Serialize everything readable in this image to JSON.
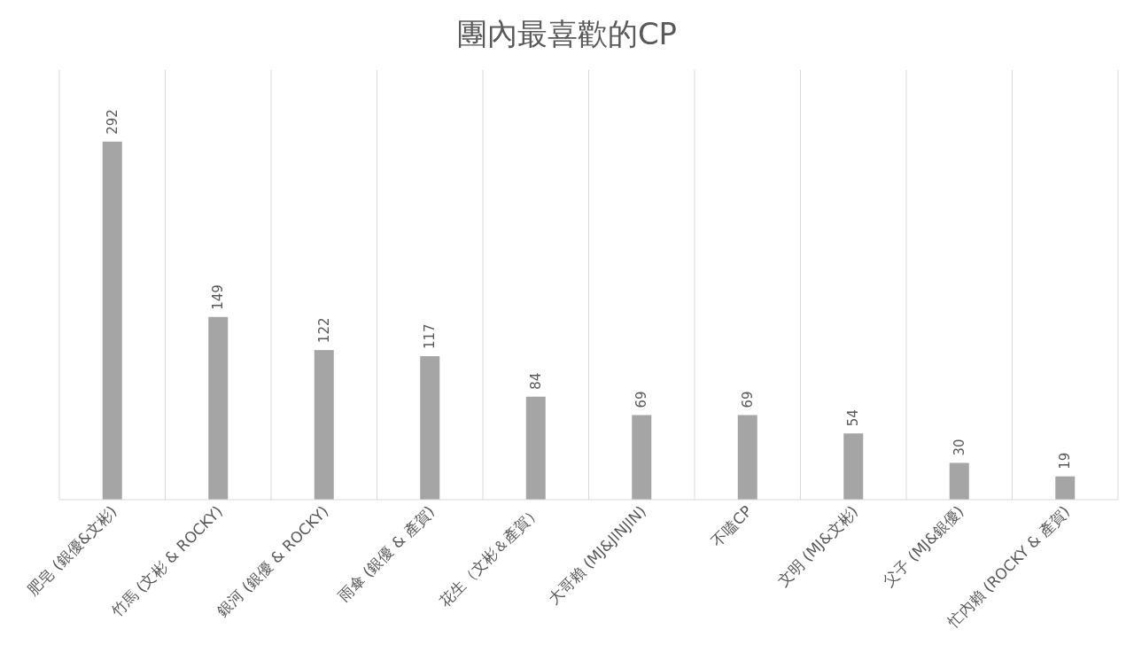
{
  "chart_data": {
    "type": "bar",
    "title": "團內最喜歡的CP",
    "categories": [
      "肥皂 (銀優&文彬)",
      "竹馬 (文彬 & ROCKY)",
      "銀河 (銀優 & ROCKY)",
      "雨傘 (銀優 & 產賀)",
      "花生（文彬＆產賀）",
      "大哥賴 (MJ&JINJIN)",
      "不嗑CP",
      "文明 (MJ&文彬)",
      "父子 (MJ&銀優)",
      "忙內賴 (ROCKY & 產賀)"
    ],
    "values": [
      292,
      149,
      122,
      117,
      84,
      69,
      69,
      54,
      30,
      19
    ],
    "color": "#a5a5a5",
    "data_labels": true,
    "grid": "x"
  }
}
